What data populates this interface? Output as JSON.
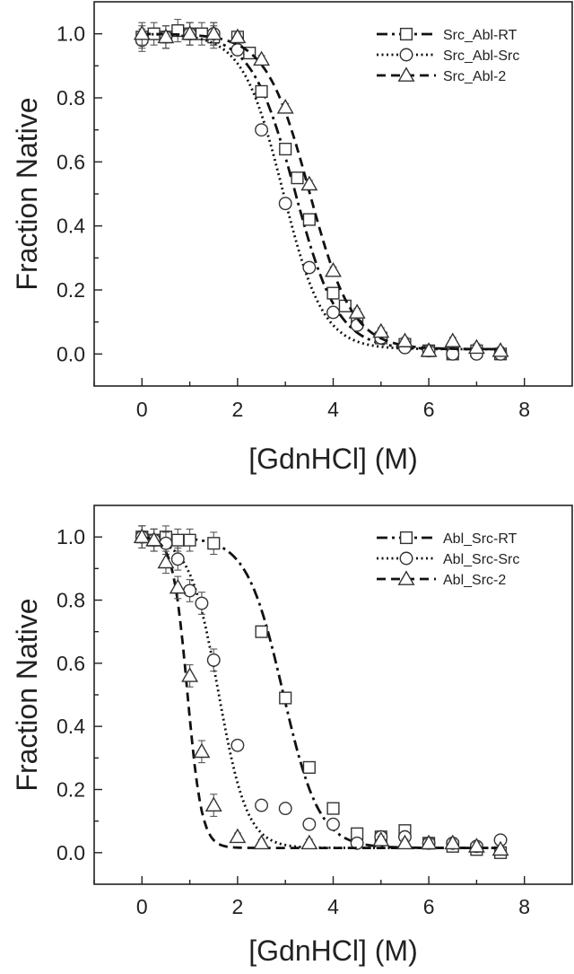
{
  "chart_data": [
    {
      "type": "scatter",
      "title": "",
      "xlabel": "[GdnHCl] (M)",
      "ylabel": "Fraction Native",
      "xlim": [
        -1,
        9
      ],
      "ylim": [
        -0.1,
        1.1
      ],
      "xticks": [
        "0",
        "2",
        "4",
        "6",
        "8"
      ],
      "yticks": [
        "0.0",
        "0.2",
        "0.4",
        "0.6",
        "0.8",
        "1.0"
      ],
      "grid": false,
      "legend_position": "top-right",
      "series": [
        {
          "name": "Src_Abl-RT",
          "marker": "square",
          "line": "dash-dot",
          "fit_midpoint": 3.2,
          "fit_width": 0.45,
          "x": [
            0,
            0.25,
            0.5,
            0.75,
            1.0,
            1.25,
            1.5,
            2.0,
            2.25,
            2.5,
            3.0,
            3.25,
            3.5,
            4.0,
            4.25,
            4.5,
            5.0,
            5.5,
            6.0,
            6.5,
            7.0,
            7.5
          ],
          "y": [
            0.99,
            1.0,
            0.99,
            1.01,
            1.0,
            1.0,
            0.99,
            0.99,
            0.94,
            0.82,
            0.64,
            0.55,
            0.42,
            0.19,
            0.15,
            0.1,
            0.05,
            0.03,
            0.01,
            0.0,
            0.01,
            0.0
          ]
        },
        {
          "name": "Src_Abl-Src",
          "marker": "circle",
          "line": "dotted",
          "fit_midpoint": 2.95,
          "fit_width": 0.42,
          "x": [
            0,
            0.5,
            1.0,
            1.5,
            2.0,
            2.5,
            3.0,
            3.5,
            4.0,
            4.5,
            5.0,
            5.5,
            6.0,
            6.5,
            7.0,
            7.5
          ],
          "y": [
            0.98,
            0.99,
            1.0,
            1.0,
            0.95,
            0.7,
            0.47,
            0.27,
            0.13,
            0.09,
            0.05,
            0.02,
            0.01,
            0.0,
            0.0,
            0.0
          ]
        },
        {
          "name": "Src_Abl-2",
          "marker": "triangle",
          "line": "dashed",
          "fit_midpoint": 3.5,
          "fit_width": 0.45,
          "x": [
            0,
            0.5,
            1.0,
            1.5,
            2.0,
            2.5,
            3.0,
            3.5,
            4.0,
            4.5,
            5.0,
            5.5,
            6.0,
            6.5,
            7.0,
            7.5
          ],
          "y": [
            1.0,
            0.99,
            1.0,
            1.0,
            0.99,
            0.92,
            0.77,
            0.53,
            0.26,
            0.13,
            0.07,
            0.04,
            0.01,
            0.04,
            0.02,
            0.01
          ]
        }
      ]
    },
    {
      "type": "scatter",
      "title": "",
      "xlabel": "[GdnHCl] (M)",
      "ylabel": "Fraction Native",
      "xlim": [
        -1,
        9
      ],
      "ylim": [
        -0.1,
        1.1
      ],
      "xticks": [
        "0",
        "2",
        "4",
        "6",
        "8"
      ],
      "yticks": [
        "0.0",
        "0.2",
        "0.4",
        "0.6",
        "0.8",
        "1.0"
      ],
      "grid": false,
      "legend_position": "top-right",
      "series": [
        {
          "name": "Abl_Src-RT",
          "marker": "square",
          "line": "dash-dot",
          "fit_midpoint": 2.95,
          "fit_width": 0.38,
          "x": [
            0,
            0.25,
            0.5,
            0.75,
            1.0,
            1.5,
            2.5,
            3.0,
            3.5,
            4.0,
            4.5,
            5.0,
            5.5,
            6.0,
            6.5,
            7.0,
            7.5
          ],
          "y": [
            1.0,
            0.99,
            1.0,
            0.99,
            0.99,
            0.98,
            0.7,
            0.49,
            0.27,
            0.14,
            0.06,
            0.05,
            0.07,
            0.03,
            0.02,
            0.01,
            0.0
          ]
        },
        {
          "name": "Abl_Src-Src",
          "marker": "circle",
          "line": "dotted",
          "fit_midpoint": 1.6,
          "fit_width": 0.3,
          "x": [
            0,
            0.25,
            0.5,
            0.75,
            1.0,
            1.25,
            1.5,
            2.0,
            2.5,
            3.0,
            3.5,
            4.0,
            4.5,
            5.0,
            5.5,
            6.0,
            6.5,
            7.0,
            7.5
          ],
          "y": [
            1.0,
            0.99,
            0.98,
            0.93,
            0.83,
            0.79,
            0.61,
            0.34,
            0.15,
            0.14,
            0.09,
            0.09,
            0.03,
            0.05,
            0.05,
            0.03,
            0.03,
            0.02,
            0.04
          ]
        },
        {
          "name": "Abl_Src-2",
          "marker": "triangle",
          "line": "dashed",
          "fit_midpoint": 0.95,
          "fit_width": 0.15,
          "x": [
            0,
            0.25,
            0.5,
            0.75,
            1.0,
            1.25,
            1.5,
            2.0,
            2.5,
            3.5,
            5.0,
            5.5,
            6.0,
            6.5,
            7.0,
            7.5
          ],
          "y": [
            1.0,
            0.99,
            0.92,
            0.84,
            0.56,
            0.32,
            0.15,
            0.05,
            0.03,
            0.03,
            0.04,
            0.03,
            0.03,
            0.03,
            0.02,
            0.01
          ]
        }
      ]
    }
  ]
}
